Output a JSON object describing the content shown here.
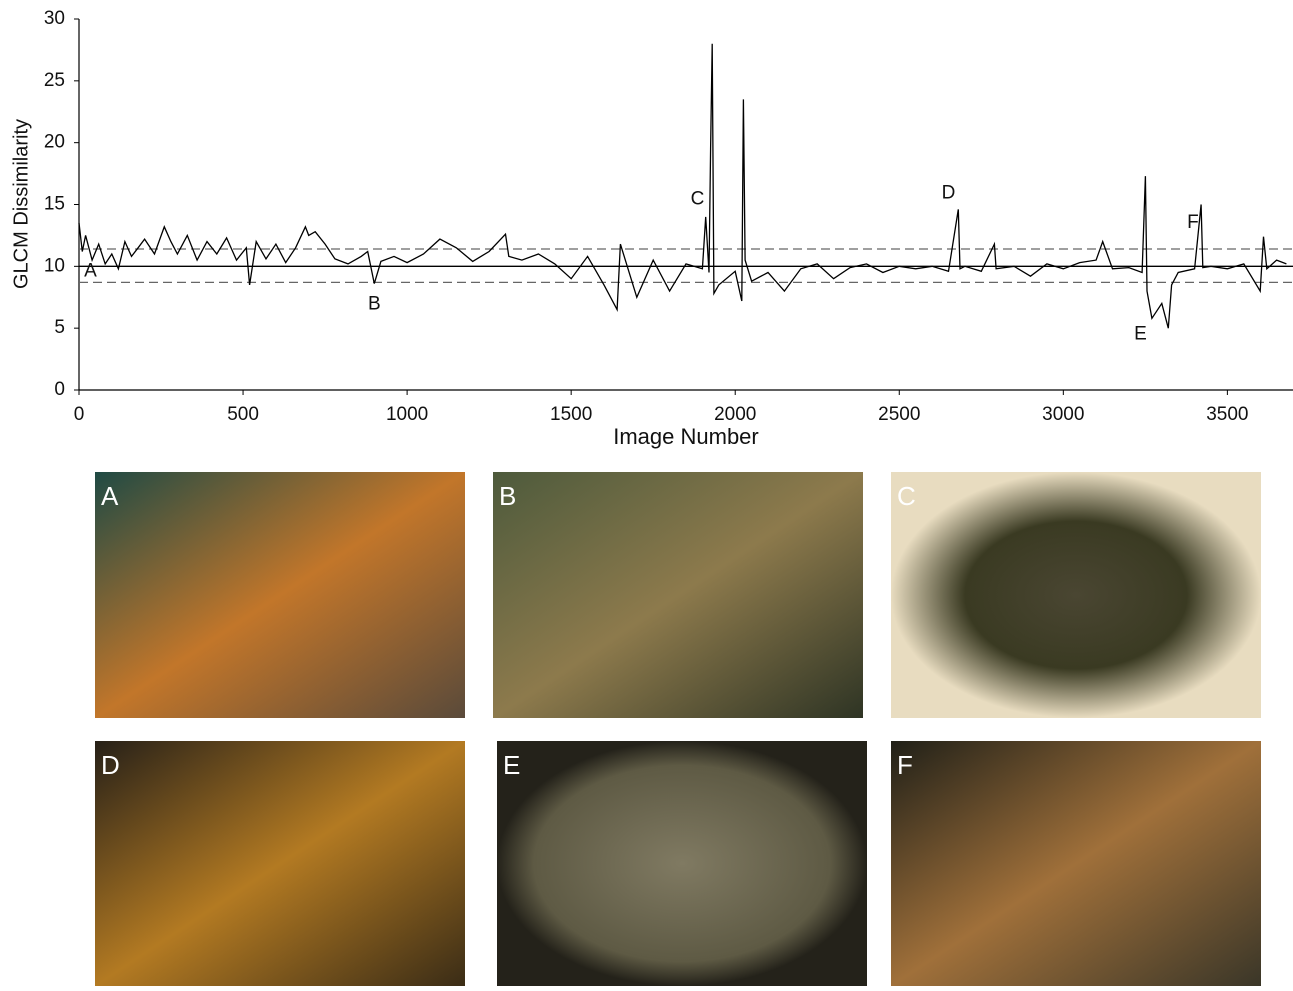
{
  "chart_data": {
    "type": "line",
    "xlabel": "Image Number",
    "ylabel": "GLCM Dissimilarity",
    "xlim": [
      0,
      3700
    ],
    "xticks": [
      0,
      500,
      1000,
      1500,
      2000,
      2500,
      3000,
      3500
    ],
    "ylim": [
      0,
      30
    ],
    "yticks": [
      0,
      5,
      10,
      15,
      20,
      25,
      30
    ],
    "color": "#000000",
    "x": [
      0,
      10,
      20,
      40,
      60,
      80,
      100,
      120,
      140,
      160,
      180,
      200,
      230,
      260,
      280,
      300,
      330,
      360,
      390,
      420,
      450,
      480,
      510,
      520,
      540,
      570,
      600,
      630,
      660,
      690,
      700,
      720,
      750,
      780,
      820,
      860,
      880,
      900,
      920,
      960,
      1000,
      1050,
      1100,
      1150,
      1200,
      1250,
      1300,
      1310,
      1350,
      1400,
      1450,
      1500,
      1550,
      1600,
      1640,
      1650,
      1700,
      1750,
      1800,
      1850,
      1900,
      1910,
      1920,
      1925,
      1930,
      1935,
      1950,
      2000,
      2020,
      2025,
      2030,
      2050,
      2100,
      2150,
      2200,
      2250,
      2300,
      2350,
      2400,
      2450,
      2500,
      2550,
      2600,
      2650,
      2680,
      2685,
      2700,
      2750,
      2790,
      2795,
      2850,
      2900,
      2950,
      3000,
      3050,
      3100,
      3120,
      3150,
      3200,
      3240,
      3250,
      3255,
      3270,
      3300,
      3320,
      3330,
      3350,
      3400,
      3420,
      3425,
      3450,
      3500,
      3550,
      3600,
      3610,
      3620,
      3650,
      3680
    ],
    "values": [
      13.5,
      11.2,
      12.5,
      10.5,
      11.8,
      10.2,
      11.0,
      9.8,
      12.0,
      10.8,
      11.5,
      12.2,
      11.0,
      13.2,
      12.0,
      11.0,
      12.5,
      10.5,
      12.0,
      11.0,
      12.3,
      10.5,
      11.5,
      8.5,
      12.0,
      10.6,
      11.8,
      10.3,
      11.5,
      13.2,
      12.5,
      12.8,
      11.8,
      10.6,
      10.2,
      10.8,
      11.2,
      8.6,
      10.4,
      10.8,
      10.3,
      11.0,
      12.2,
      11.5,
      10.4,
      11.2,
      12.6,
      10.8,
      10.5,
      11.0,
      10.2,
      9.0,
      10.8,
      8.5,
      6.5,
      11.8,
      7.5,
      10.5,
      8.0,
      10.2,
      9.8,
      14.0,
      9.5,
      19.5,
      28,
      7.8,
      8.5,
      9.6,
      7.2,
      23.5,
      10.5,
      8.8,
      9.5,
      8.0,
      9.8,
      10.2,
      9.0,
      9.9,
      10.2,
      9.5,
      10.0,
      9.8,
      10.0,
      9.6,
      14.6,
      9.8,
      10.0,
      9.6,
      11.8,
      9.8,
      10.0,
      9.2,
      10.2,
      9.8,
      10.3,
      10.5,
      12.0,
      9.8,
      9.9,
      9.5,
      17.3,
      8.0,
      5.8,
      7.0,
      5.0,
      8.5,
      9.5,
      9.8,
      15.0,
      9.9,
      10.0,
      9.8,
      10.2,
      8.0,
      12.4,
      9.8,
      10.5,
      10.2
    ],
    "reference_lines": [
      {
        "value": 10,
        "style": "solid"
      },
      {
        "value": 11.4,
        "style": "dashed"
      },
      {
        "value": 8.7,
        "style": "dashed"
      }
    ],
    "annotations": [
      {
        "text": "A",
        "x": 35,
        "y": 9.6
      },
      {
        "text": "B",
        "x": 900,
        "y": 6.9
      },
      {
        "text": "C",
        "x": 1885,
        "y": 15.4
      },
      {
        "text": "D",
        "x": 2650,
        "y": 15.9
      },
      {
        "text": "E",
        "x": 3235,
        "y": 4.5
      },
      {
        "text": "F",
        "x": 3395,
        "y": 13.5
      }
    ]
  },
  "panels": [
    {
      "label": "A"
    },
    {
      "label": "B"
    },
    {
      "label": "C"
    },
    {
      "label": "D"
    },
    {
      "label": "E"
    },
    {
      "label": "F"
    }
  ]
}
